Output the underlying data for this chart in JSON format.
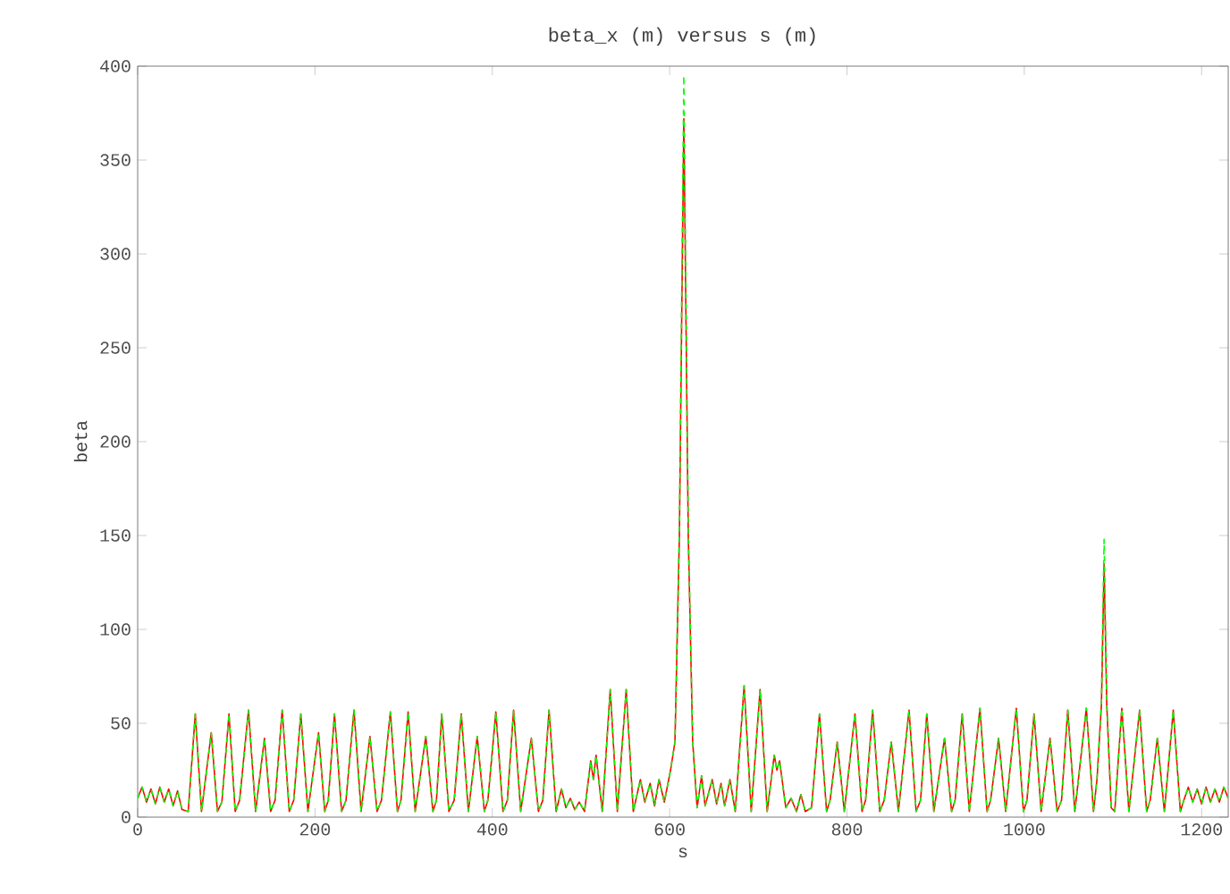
{
  "chart_data": {
    "type": "line",
    "title": "beta_x (m) versus s (m)",
    "xlabel": "s",
    "ylabel": "beta",
    "x": [
      0,
      5,
      10,
      15,
      20,
      25,
      30,
      35,
      40,
      45,
      50,
      57,
      65,
      72,
      83,
      90,
      95,
      103,
      110,
      115,
      125,
      133,
      143,
      150,
      155,
      163,
      171,
      176,
      184,
      192,
      204,
      211,
      215,
      222,
      230,
      235,
      244,
      252,
      262,
      270,
      275,
      285,
      293,
      297,
      305,
      313,
      325,
      333,
      337,
      343,
      351,
      357,
      365,
      373,
      383,
      391,
      395,
      404,
      412,
      417,
      424,
      432,
      444,
      452,
      457,
      464,
      472,
      478,
      483,
      488,
      493,
      498,
      504,
      511,
      514,
      517,
      524,
      533,
      541,
      551,
      559,
      567,
      572,
      578,
      583,
      588,
      594,
      601,
      606,
      611,
      616,
      621,
      626,
      631,
      636,
      640,
      648,
      653,
      658,
      662,
      668,
      674,
      684,
      692,
      702,
      710,
      718,
      721,
      724,
      731,
      737,
      743,
      748,
      753,
      760,
      769,
      777,
      781,
      789,
      797,
      809,
      817,
      821,
      829,
      837,
      842,
      850,
      858,
      870,
      878,
      883,
      890,
      898,
      910,
      918,
      922,
      930,
      938,
      950,
      958,
      962,
      971,
      979,
      991,
      999,
      1003,
      1011,
      1019,
      1029,
      1037,
      1042,
      1049,
      1057,
      1070,
      1078,
      1082,
      1087,
      1090,
      1093,
      1098,
      1102,
      1110,
      1118,
      1130,
      1138,
      1142,
      1150,
      1158,
      1168,
      1176,
      1180,
      1185,
      1190,
      1195,
      1200,
      1205,
      1210,
      1215,
      1220,
      1225,
      1230
    ],
    "series": [
      {
        "color": "#ff0000",
        "line_style": "solid",
        "values": [
          10,
          16,
          8,
          15,
          7,
          16,
          8,
          15,
          6,
          14,
          4,
          3,
          55,
          3,
          45,
          3,
          8,
          55,
          3,
          9,
          57,
          3,
          42,
          3,
          9,
          57,
          3,
          9,
          55,
          3,
          45,
          3,
          9,
          55,
          3,
          9,
          57,
          3,
          43,
          3,
          9,
          56,
          3,
          9,
          56,
          3,
          43,
          3,
          9,
          55,
          3,
          9,
          55,
          3,
          43,
          3,
          9,
          56,
          3,
          9,
          57,
          3,
          42,
          3,
          9,
          57,
          3,
          15,
          5,
          10,
          4,
          8,
          3,
          30,
          20,
          33,
          3,
          68,
          3,
          68,
          3,
          20,
          8,
          18,
          6,
          20,
          8,
          25,
          40,
          150,
          372,
          150,
          40,
          5,
          22,
          6,
          20,
          7,
          18,
          6,
          20,
          3,
          70,
          3,
          68,
          3,
          33,
          25,
          30,
          5,
          10,
          3,
          12,
          3,
          5,
          55,
          3,
          9,
          40,
          3,
          55,
          3,
          9,
          57,
          3,
          9,
          40,
          3,
          57,
          3,
          9,
          55,
          3,
          42,
          3,
          9,
          55,
          3,
          58,
          3,
          9,
          42,
          3,
          58,
          3,
          9,
          55,
          3,
          42,
          3,
          9,
          57,
          3,
          58,
          3,
          20,
          60,
          135,
          60,
          5,
          3,
          58,
          3,
          57,
          3,
          9,
          42,
          3,
          57,
          3,
          9,
          16,
          8,
          15,
          7,
          16,
          8,
          15,
          8,
          16,
          10
        ]
      },
      {
        "color": "#00ff00",
        "line_style": "dashed",
        "values": [
          10,
          16,
          8,
          15,
          7,
          16,
          8,
          15,
          6,
          14,
          4,
          3,
          55,
          3,
          45,
          3,
          8,
          55,
          3,
          9,
          57,
          3,
          42,
          3,
          9,
          57,
          3,
          9,
          55,
          3,
          45,
          3,
          9,
          55,
          3,
          9,
          57,
          3,
          43,
          3,
          9,
          56,
          3,
          9,
          56,
          3,
          43,
          3,
          9,
          55,
          3,
          9,
          55,
          3,
          43,
          3,
          9,
          56,
          3,
          9,
          57,
          3,
          42,
          3,
          9,
          57,
          3,
          15,
          5,
          10,
          4,
          8,
          3,
          30,
          20,
          33,
          3,
          68,
          3,
          68,
          3,
          20,
          8,
          18,
          6,
          20,
          8,
          25,
          40,
          155,
          395,
          155,
          40,
          5,
          22,
          6,
          20,
          7,
          18,
          6,
          20,
          3,
          70,
          3,
          68,
          3,
          33,
          25,
          30,
          5,
          10,
          3,
          12,
          3,
          5,
          55,
          3,
          9,
          40,
          3,
          55,
          3,
          9,
          57,
          3,
          9,
          40,
          3,
          57,
          3,
          9,
          55,
          3,
          42,
          3,
          9,
          55,
          3,
          58,
          3,
          9,
          42,
          3,
          58,
          3,
          9,
          55,
          3,
          42,
          3,
          9,
          57,
          3,
          58,
          3,
          20,
          62,
          148,
          62,
          5,
          3,
          58,
          3,
          57,
          3,
          9,
          42,
          3,
          57,
          3,
          9,
          16,
          8,
          15,
          7,
          16,
          8,
          15,
          8,
          16,
          10
        ]
      }
    ],
    "xlim": [
      0,
      1230
    ],
    "ylim": [
      0,
      400
    ],
    "xticks": [
      0,
      200,
      400,
      600,
      800,
      1000,
      1200
    ],
    "yticks": [
      0,
      50,
      100,
      150,
      200,
      250,
      300,
      350,
      400
    ]
  }
}
